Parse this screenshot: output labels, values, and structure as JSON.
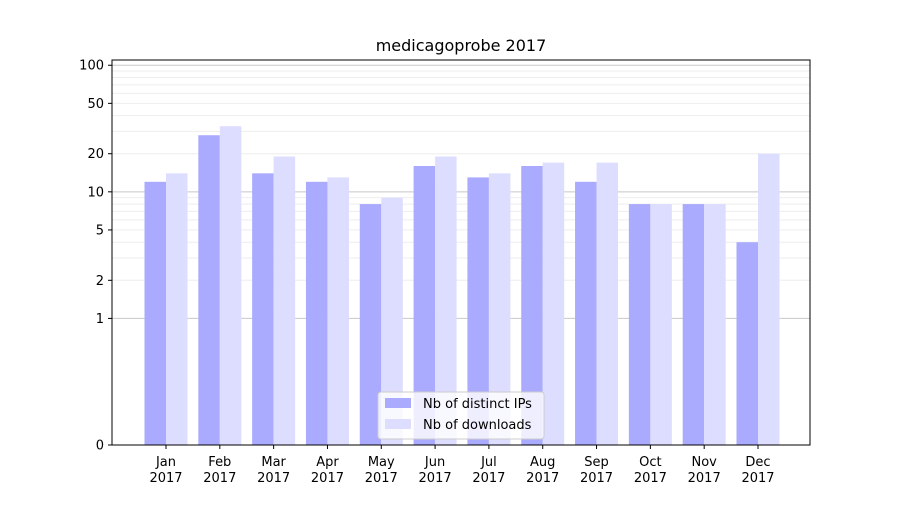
{
  "chart_data": {
    "type": "bar",
    "title": "medicagoprobe 2017",
    "xlabel": "",
    "ylabel": "",
    "yscale": "symlog",
    "ylim": [
      0,
      110
    ],
    "yticks": [
      0,
      1,
      2,
      5,
      10,
      20,
      50,
      100
    ],
    "categories": [
      [
        "Jan",
        "2017"
      ],
      [
        "Feb",
        "2017"
      ],
      [
        "Mar",
        "2017"
      ],
      [
        "Apr",
        "2017"
      ],
      [
        "May",
        "2017"
      ],
      [
        "Jun",
        "2017"
      ],
      [
        "Jul",
        "2017"
      ],
      [
        "Aug",
        "2017"
      ],
      [
        "Sep",
        "2017"
      ],
      [
        "Oct",
        "2017"
      ],
      [
        "Nov",
        "2017"
      ],
      [
        "Dec",
        "2017"
      ]
    ],
    "series": [
      {
        "name": "Nb of distinct IPs",
        "color": "#aaaaff",
        "values": [
          12,
          28,
          14,
          12,
          8,
          16,
          13,
          16,
          12,
          8,
          8,
          4
        ]
      },
      {
        "name": "Nb of downloads",
        "color": "#ddddff",
        "values": [
          14,
          33,
          19,
          13,
          9,
          19,
          14,
          17,
          17,
          8,
          8,
          20
        ]
      }
    ],
    "legend_position": "lower-center",
    "grid": "horizontal"
  }
}
